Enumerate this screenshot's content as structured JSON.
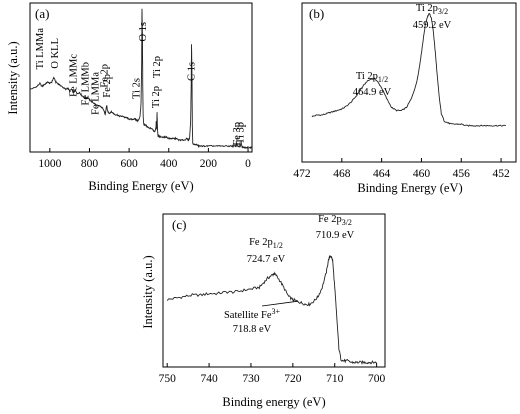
{
  "chart_data": [
    {
      "panel": "(a)",
      "type": "line",
      "xlabel": "Binding Energy (eV)",
      "ylabel": "Intensity (a.u.)",
      "xlim": [
        1100,
        -20
      ],
      "ticks": [
        1000,
        800,
        600,
        400,
        200,
        0
      ],
      "tick_labels": [
        "1000",
        "800",
        "600",
        "400",
        "200",
        "0"
      ],
      "x": [
        1100,
        1080,
        1065,
        1050,
        1040,
        1030,
        1020,
        1010,
        1000,
        990,
        980,
        970,
        960,
        950,
        940,
        930,
        920,
        910,
        900,
        890,
        880,
        870,
        860,
        850,
        840,
        830,
        820,
        810,
        800,
        790,
        780,
        770,
        760,
        750,
        740,
        730,
        725,
        720,
        715,
        712,
        710,
        706,
        700,
        690,
        680,
        670,
        660,
        650,
        640,
        630,
        620,
        610,
        600,
        590,
        580,
        570,
        565,
        560,
        555,
        550,
        545,
        540,
        537,
        535,
        533,
        531,
        529,
        527,
        525,
        522,
        520,
        515,
        510,
        500,
        490,
        480,
        475,
        470,
        465,
        463,
        461,
        459,
        457,
        455,
        453,
        450,
        445,
        440,
        430,
        420,
        410,
        400,
        390,
        380,
        370,
        360,
        350,
        340,
        330,
        320,
        310,
        300,
        295,
        290,
        287,
        285,
        283,
        281,
        279,
        275,
        270,
        260,
        250,
        240,
        230,
        220,
        200,
        180,
        160,
        140,
        120,
        100,
        80,
        70,
        60,
        58,
        56,
        54,
        52,
        50,
        45,
        40,
        37,
        35,
        33,
        31,
        29,
        25,
        20,
        10,
        0,
        -10,
        -20
      ],
      "y": [
        0.42,
        0.43,
        0.44,
        0.46,
        0.44,
        0.45,
        0.46,
        0.47,
        0.46,
        0.47,
        0.5,
        0.47,
        0.46,
        0.45,
        0.44,
        0.43,
        0.42,
        0.43,
        0.41,
        0.42,
        0.4,
        0.41,
        0.39,
        0.4,
        0.38,
        0.37,
        0.36,
        0.37,
        0.35,
        0.34,
        0.33,
        0.32,
        0.31,
        0.31,
        0.3,
        0.29,
        0.27,
        0.25,
        0.3,
        0.31,
        0.28,
        0.27,
        0.26,
        0.27,
        0.26,
        0.25,
        0.25,
        0.24,
        0.24,
        0.24,
        0.23,
        0.23,
        0.22,
        0.22,
        0.22,
        0.22,
        0.22,
        0.21,
        0.21,
        0.22,
        0.24,
        0.32,
        0.55,
        0.96,
        0.8,
        0.42,
        0.24,
        0.2,
        0.18,
        0.18,
        0.18,
        0.18,
        0.17,
        0.16,
        0.16,
        0.15,
        0.14,
        0.14,
        0.16,
        0.21,
        0.15,
        0.27,
        0.16,
        0.12,
        0.1,
        0.11,
        0.1,
        0.1,
        0.1,
        0.1,
        0.1,
        0.09,
        0.09,
        0.09,
        0.09,
        0.09,
        0.08,
        0.08,
        0.08,
        0.08,
        0.09,
        0.08,
        0.09,
        0.2,
        0.4,
        0.72,
        0.55,
        0.18,
        0.06,
        0.05,
        0.05,
        0.05,
        0.04,
        0.04,
        0.04,
        0.04,
        0.04,
        0.04,
        0.04,
        0.04,
        0.04,
        0.04,
        0.04,
        0.04,
        0.04,
        0.06,
        0.05,
        0.04,
        0.04,
        0.04,
        0.04,
        0.04,
        0.05,
        0.07,
        0.05,
        0.04,
        0.03,
        0.03,
        0.03,
        0.03,
        0.03,
        0.03,
        0.03
      ],
      "ylim": [
        0,
        1
      ],
      "annotations": [
        {
          "text": "Ti LMMa",
          "x": 1050
        },
        {
          "text": "O KLL",
          "x": 975
        },
        {
          "text": "Fe LMMc",
          "x": 880
        },
        {
          "text": "Fe LMMb",
          "x": 820
        },
        {
          "text": "Fe LMMa",
          "x": 770
        },
        {
          "text": "Fe 2p",
          "x": 724
        },
        {
          "text": "Fe 2p",
          "x": 711
        },
        {
          "text": "Ti 2s",
          "x": 563
        },
        {
          "text": "O 1s",
          "x": 531
        },
        {
          "text": "Ti 2p",
          "x": 465
        },
        {
          "text": "Ti 2p",
          "x": 459
        },
        {
          "text": "C 1s",
          "x": 285
        },
        {
          "text": "Fe 3p",
          "x": 56
        },
        {
          "text": "Ti 3p",
          "x": 38
        }
      ]
    },
    {
      "panel": "(b)",
      "type": "line",
      "xlabel": "Binding Energy (eV)",
      "xlim": [
        472,
        450.5
      ],
      "ticks": [
        472,
        468,
        464,
        460,
        456,
        452
      ],
      "tick_labels": [
        "472",
        "468",
        "464",
        "460",
        "456",
        "452"
      ],
      "x": [
        471,
        470.5,
        470,
        469.5,
        469,
        468.5,
        468,
        467.5,
        467,
        466.5,
        466,
        465.5,
        465,
        464.7,
        464.4,
        464,
        463.5,
        463,
        462.5,
        462,
        461.5,
        461,
        460.5,
        460.2,
        460,
        459.8,
        459.6,
        459.4,
        459.2,
        459,
        458.8,
        458.6,
        458.4,
        458.2,
        458,
        457.7,
        457.4,
        457,
        456.5,
        456,
        455.5,
        455,
        454.5,
        454,
        453.5,
        453,
        452.5,
        452,
        451.5
      ],
      "y": [
        0.3,
        0.31,
        0.31,
        0.32,
        0.33,
        0.34,
        0.35,
        0.37,
        0.4,
        0.44,
        0.49,
        0.53,
        0.55,
        0.55,
        0.53,
        0.49,
        0.42,
        0.36,
        0.34,
        0.34,
        0.36,
        0.42,
        0.52,
        0.63,
        0.72,
        0.82,
        0.91,
        0.96,
        0.98,
        0.95,
        0.86,
        0.72,
        0.56,
        0.42,
        0.32,
        0.27,
        0.26,
        0.25,
        0.25,
        0.25,
        0.24,
        0.24,
        0.24,
        0.24,
        0.24,
        0.24,
        0.24,
        0.24,
        0.24
      ],
      "ylim": [
        0,
        1.05
      ],
      "peaks": [
        {
          "label": "Ti 2p",
          "subscript": "1/2",
          "energy_text": "464.9 eV"
        },
        {
          "label": "Ti 2p",
          "subscript": "3/2",
          "energy_text": "459.2 eV"
        }
      ]
    },
    {
      "panel": "(c)",
      "type": "line",
      "xlabel": "Binding energy (eV)",
      "ylabel": "Intensity (a.u.)",
      "xlim": [
        751,
        698
      ],
      "ticks": [
        750,
        740,
        730,
        720,
        710,
        700
      ],
      "tick_labels": [
        "750",
        "740",
        "730",
        "720",
        "710",
        "700"
      ],
      "x": [
        750,
        748,
        746,
        744,
        742,
        740,
        738,
        736,
        734,
        732,
        730,
        728,
        727,
        726,
        725,
        724.5,
        724,
        723,
        722,
        721,
        720,
        719,
        718,
        717,
        716,
        715,
        714,
        713,
        712,
        711.5,
        711,
        710.5,
        710,
        709.5,
        709,
        708.5,
        708,
        707,
        706,
        705,
        704,
        703,
        702,
        701,
        700
      ],
      "y": [
        0.44,
        0.45,
        0.46,
        0.47,
        0.47,
        0.48,
        0.48,
        0.49,
        0.49,
        0.5,
        0.51,
        0.52,
        0.55,
        0.58,
        0.6,
        0.61,
        0.6,
        0.56,
        0.51,
        0.46,
        0.44,
        0.43,
        0.42,
        0.41,
        0.41,
        0.43,
        0.46,
        0.52,
        0.62,
        0.7,
        0.73,
        0.7,
        0.52,
        0.32,
        0.12,
        0.05,
        0.04,
        0.04,
        0.03,
        0.03,
        0.03,
        0.03,
        0.03,
        0.03,
        0.03
      ],
      "ylim": [
        0,
        1
      ],
      "peaks": [
        {
          "label": "Fe 2p",
          "subscript": "1/2",
          "energy_text": "724.7 eV"
        },
        {
          "label": "Fe 2p",
          "subscript": "3/2",
          "energy_text": "710.9 eV"
        }
      ],
      "satellite": {
        "label": "Satellite Fe",
        "superscript": "3+",
        "energy_text": "718.8 eV",
        "x": 718.8
      }
    }
  ]
}
